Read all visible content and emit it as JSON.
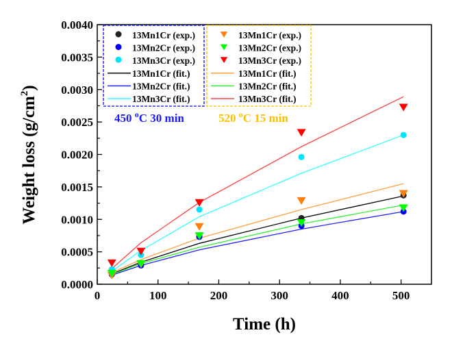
{
  "chart_data": {
    "type": "scatter",
    "title": "",
    "xlabel": "Time (h)",
    "ylabel": "Weight loss (g/cm",
    "ylabel_sup": "2",
    "ylabel_close": ")",
    "xlim": [
      0,
      550
    ],
    "ylim": [
      0,
      0.004
    ],
    "xticks": [
      0,
      100,
      200,
      300,
      400,
      500
    ],
    "xtick_labels": [
      "0",
      "100",
      "200",
      "300",
      "400",
      "500"
    ],
    "yticks": [
      0,
      0.0005,
      0.001,
      0.0015,
      0.002,
      0.0025,
      0.003,
      0.0035,
      0.004
    ],
    "ytick_labels": [
      "0.0000",
      "0.0005",
      "0.0010",
      "0.0015",
      "0.0020",
      "0.0025",
      "0.0030",
      "0.0035",
      "0.0040"
    ],
    "grid": false,
    "x": [
      24,
      72,
      168,
      336,
      504
    ],
    "series": [
      {
        "name": "13Mn1Cr (exp.)",
        "group": "450",
        "kind": "exp",
        "marker": "circle",
        "color": "#000000",
        "values": [
          0.00016,
          0.0003,
          0.00074,
          0.00102,
          0.00137
        ]
      },
      {
        "name": "13Mn2Cr (exp.)",
        "group": "450",
        "kind": "exp",
        "marker": "circle",
        "color": "#0000ff",
        "values": [
          0.00015,
          0.00029,
          0.00073,
          0.0009,
          0.00112
        ]
      },
      {
        "name": "13Mn3Cr (exp.)",
        "group": "450",
        "kind": "exp",
        "marker": "circle",
        "color": "#00e5ff",
        "values": [
          0.00023,
          0.00045,
          0.00115,
          0.00196,
          0.0023
        ]
      },
      {
        "name": "13Mn1Cr (fit.)",
        "group": "450",
        "kind": "fit",
        "color": "#000000",
        "values": [
          0.00016,
          0.00034,
          0.00063,
          0.00102,
          0.00136
        ]
      },
      {
        "name": "13Mn2Cr (fit.)",
        "group": "450",
        "kind": "fit",
        "color": "#2020ff",
        "values": [
          0.00014,
          0.00029,
          0.00053,
          0.00085,
          0.00112
        ]
      },
      {
        "name": "13Mn3Cr (fit.)",
        "group": "450",
        "kind": "fit",
        "color": "#33ffff",
        "values": [
          0.0002,
          0.00052,
          0.00104,
          0.00171,
          0.0023
        ]
      },
      {
        "name": "13Mn1Cr (exp.)",
        "group": "520",
        "kind": "exp",
        "marker": "triangle-down",
        "color": "#ff7f0e",
        "values": [
          0.00014,
          0.00031,
          0.00089,
          0.00129,
          0.0014
        ]
      },
      {
        "name": "13Mn2Cr (exp.)",
        "group": "520",
        "kind": "exp",
        "marker": "triangle-down",
        "color": "#00ff00",
        "values": [
          0.00017,
          0.00032,
          0.00075,
          0.00095,
          0.00118
        ]
      },
      {
        "name": "13Mn3Cr (exp.)",
        "group": "520",
        "kind": "exp",
        "marker": "triangle-down",
        "color": "#ff0000",
        "values": [
          0.00033,
          0.00051,
          0.00126,
          0.00234,
          0.00273
        ]
      },
      {
        "name": "13Mn1Cr (fit.)",
        "group": "520",
        "kind": "fit",
        "color": "#ffa040",
        "values": [
          0.00018,
          0.00038,
          0.00071,
          0.00115,
          0.00155
        ]
      },
      {
        "name": "13Mn2Cr (fit.)",
        "group": "520",
        "kind": "fit",
        "color": "#33ee33",
        "values": [
          0.00015,
          0.00032,
          0.00057,
          0.00093,
          0.00122
        ]
      },
      {
        "name": "13Mn3Cr (fit.)",
        "group": "520",
        "kind": "fit",
        "color": "#ff4040",
        "values": [
          0.00024,
          0.00064,
          0.00126,
          0.00212,
          0.00289
        ]
      }
    ],
    "legend_groups": [
      {
        "label": "450 oC 30 min",
        "label_main": "450 ",
        "label_sup": "o",
        "label_rest": "C 30 min",
        "border_color": "#0000ff",
        "text_color": "#1a1aff",
        "placement": "top-left"
      },
      {
        "label": "520 oC 15 min",
        "label_main": "520 ",
        "label_sup": "o",
        "label_rest": "C 15 min",
        "border_color": "#ffc000",
        "text_color": "#ffc000",
        "placement": "top-center"
      }
    ]
  }
}
